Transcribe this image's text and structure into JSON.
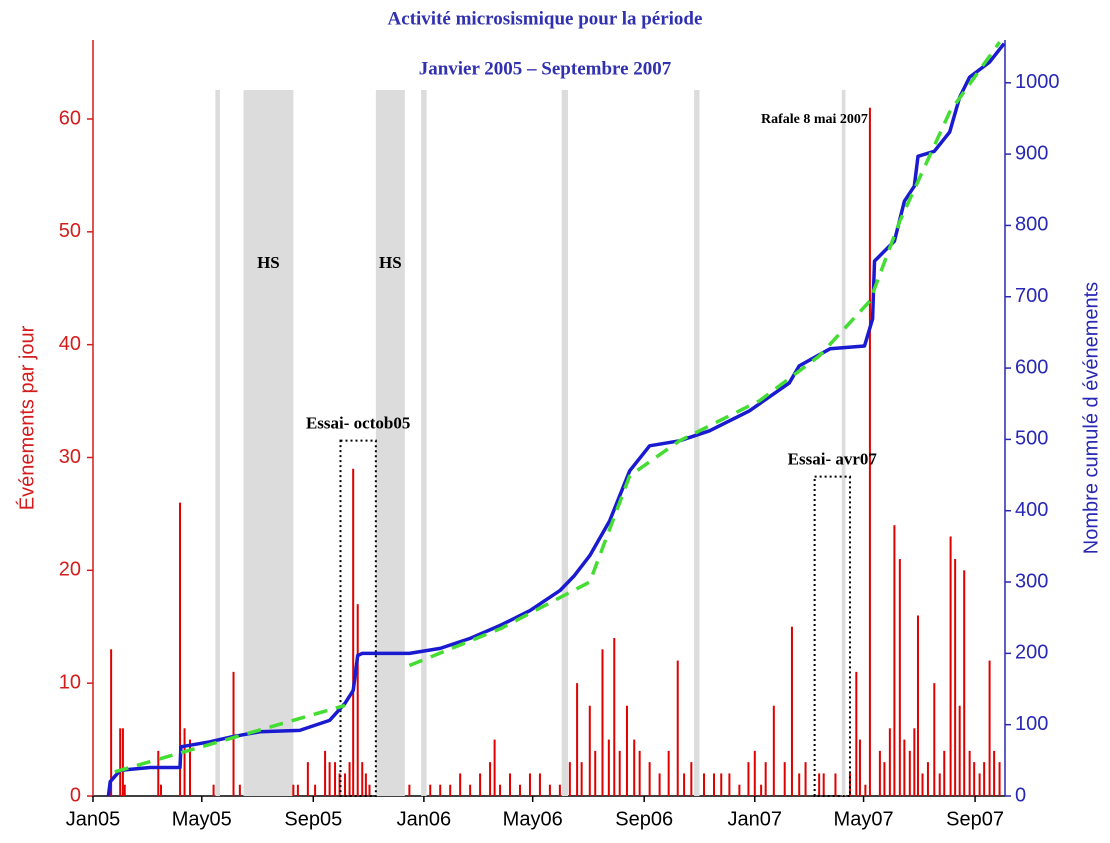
{
  "chart_data": {
    "type": "bar-line",
    "title": "Activité microsismique pour la période",
    "subtitle": "Janvier 2005 – Septembre 2007",
    "ylabel": "Événements par jour",
    "y2label": "Nombre cumulé d événements",
    "xlim": [
      0,
      1006
    ],
    "xticks": [
      {
        "value": 0,
        "label": "Jan05"
      },
      {
        "value": 120,
        "label": "May05"
      },
      {
        "value": 243,
        "label": "Sep05"
      },
      {
        "value": 365,
        "label": "Jan06"
      },
      {
        "value": 485,
        "label": "May06"
      },
      {
        "value": 608,
        "label": "Sep06"
      },
      {
        "value": 730,
        "label": "Jan07"
      },
      {
        "value": 850,
        "label": "May07"
      },
      {
        "value": 973,
        "label": "Sep07"
      }
    ],
    "ylim": [
      0,
      67
    ],
    "yticks": [
      0,
      10,
      20,
      30,
      40,
      50,
      60
    ],
    "y2lim": [
      0,
      1060
    ],
    "y2ticks": [
      0,
      100,
      200,
      300,
      400,
      500,
      600,
      700,
      800,
      900,
      1000
    ],
    "left_color": "#d41c1c",
    "right_color": "#2828b4",
    "title_color": "#3030b0",
    "shaded_color": "#dcdcdc",
    "shaded_periods": [
      [
        135,
        140
      ],
      [
        166,
        221
      ],
      [
        312,
        344
      ],
      [
        362,
        368
      ],
      [
        517,
        524
      ],
      [
        663,
        669
      ],
      [
        826,
        830
      ]
    ],
    "annotations": [
      "HS",
      "HS",
      "Rafale 8 mai 2007"
    ],
    "test_boxes": [
      {
        "label": "Essai- octob05",
        "x": [
          273,
          312
        ],
        "top": 31.5
      },
      {
        "label": "Essai- avr07",
        "x": [
          796,
          835
        ],
        "top": 28.3
      }
    ],
    "daily": {
      "color": "#e00000",
      "x": [
        20,
        30,
        33,
        35,
        72,
        75,
        96,
        101,
        107,
        133,
        155,
        162,
        221,
        226,
        237,
        245,
        256,
        261,
        267,
        272,
        278,
        283,
        287,
        292,
        297,
        301,
        305,
        349,
        372,
        383,
        394,
        405,
        416,
        427,
        438,
        443,
        449,
        460,
        471,
        482,
        493,
        504,
        515,
        526,
        534,
        539,
        548,
        554,
        562,
        569,
        575,
        581,
        589,
        597,
        603,
        614,
        625,
        635,
        645,
        652,
        660,
        674,
        685,
        693,
        702,
        713,
        723,
        730,
        737,
        742,
        751,
        763,
        771,
        779,
        786,
        801,
        806,
        819,
        835,
        842,
        846,
        852,
        857,
        868,
        873,
        879,
        884,
        890,
        895,
        901,
        906,
        910,
        915,
        921,
        928,
        934,
        939,
        946,
        951,
        956,
        961,
        967,
        972,
        978,
        983,
        989,
        994,
        1000
      ],
      "values": [
        13,
        6,
        6,
        1,
        4,
        1,
        26,
        6,
        5,
        1,
        11,
        1,
        1,
        1,
        3,
        1,
        4,
        3,
        3,
        2,
        2,
        3,
        29,
        17,
        3,
        2,
        1,
        1,
        1,
        1,
        1,
        2,
        1,
        2,
        3,
        5,
        1,
        2,
        1,
        2,
        2,
        1,
        1,
        3,
        10,
        3,
        8,
        4,
        13,
        5,
        14,
        4,
        8,
        5,
        4,
        3,
        2,
        4,
        12,
        2,
        3,
        2,
        2,
        2,
        2,
        1,
        3,
        4,
        1,
        3,
        8,
        3,
        15,
        2,
        3,
        2,
        2,
        2,
        2,
        11,
        5,
        1,
        61,
        4,
        3,
        6,
        24,
        21,
        5,
        4,
        6,
        16,
        2,
        3,
        10,
        2,
        4,
        23,
        21,
        8,
        20,
        4,
        3,
        2,
        3,
        12,
        4,
        3
      ]
    },
    "cumulative": {
      "color": "#1a1ad0",
      "axis": "y2",
      "x": [
        17,
        19,
        30,
        63,
        96,
        97,
        129,
        153,
        184,
        228,
        261,
        278,
        287,
        292,
        297,
        349,
        383,
        416,
        449,
        482,
        515,
        531,
        548,
        570,
        592,
        614,
        647,
        680,
        724,
        768,
        779,
        813,
        851,
        860,
        862,
        884,
        895,
        906,
        910,
        928,
        945,
        956,
        967,
        989,
        1005
      ],
      "values": [
        0,
        20,
        36,
        40,
        40,
        69,
        76,
        83,
        90,
        92,
        106,
        130,
        148,
        197,
        200,
        200,
        207,
        221,
        239,
        260,
        288,
        309,
        337,
        386,
        456,
        491,
        498,
        512,
        540,
        579,
        603,
        627,
        631,
        669,
        750,
        778,
        834,
        855,
        897,
        904,
        931,
        980,
        1008,
        1029,
        1055
      ]
    },
    "trend": {
      "color": "#44dd33",
      "axis": "y2",
      "x": [
        24,
        278,
        300,
        349,
        450,
        548,
        592,
        647,
        735,
        801,
        857,
        890,
        945,
        1000
      ],
      "values": [
        34,
        127,
        null,
        183,
        235,
        300,
        449,
        498,
        554,
        617,
        694,
        806,
        959,
        1057
      ]
    }
  }
}
